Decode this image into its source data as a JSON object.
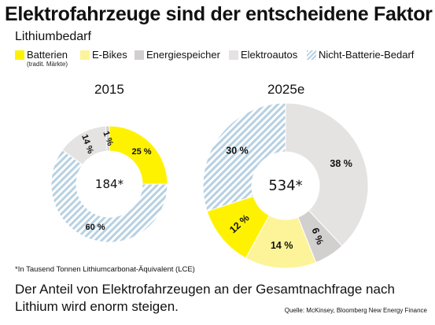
{
  "title": "Elektrofahrzeuge sind der entscheidene Faktor",
  "subtitle": "Lithiumbedarf",
  "legend": [
    {
      "label": "Batterien",
      "note": "(tradit. Märkte)",
      "color": "#fff200",
      "pattern": false
    },
    {
      "label": "E-Bikes",
      "color": "#fdf49a",
      "pattern": false
    },
    {
      "label": "Energiespeicher",
      "color": "#d2cfcf",
      "pattern": false
    },
    {
      "label": "Elektroautos",
      "color": "#e5e2e2",
      "pattern": false
    },
    {
      "label": "Nicht-Batterie-Bedarf",
      "color": "#b7d1e2",
      "pattern": true
    }
  ],
  "chart_data": [
    {
      "type": "pie",
      "title": "2015",
      "center_label": "184*",
      "total": 184,
      "slices": [
        {
          "name": "Batterien",
          "value": 25,
          "label": "25 %",
          "color": "#fff200"
        },
        {
          "name": "Nicht-Batterie-Bedarf",
          "value": 60,
          "label": "60 %",
          "color": "#b7d1e2",
          "pattern": true
        },
        {
          "name": "Elektroautos",
          "value": 14,
          "label": "14 %",
          "color": "#e5e2e2"
        },
        {
          "name": "Energiespeicher",
          "value": 1,
          "label": "1 %",
          "color": "#d2cfcf"
        }
      ]
    },
    {
      "type": "pie",
      "title": "2025e",
      "center_label": "534*",
      "total": 534,
      "slices": [
        {
          "name": "Elektroautos",
          "value": 38,
          "label": "38 %",
          "color": "#e5e2e2"
        },
        {
          "name": "Energiespeicher",
          "value": 6,
          "label": "6 %",
          "color": "#d2cfcf"
        },
        {
          "name": "E-Bikes",
          "value": 14,
          "label": "14 %",
          "color": "#fdf49a"
        },
        {
          "name": "Batterien",
          "value": 12,
          "label": "12 %",
          "color": "#fff200"
        },
        {
          "name": "Nicht-Batterie-Bedarf",
          "value": 30,
          "label": "30 %",
          "color": "#b7d1e2",
          "pattern": true
        }
      ]
    }
  ],
  "footnote": "*In Tausend Tonnen Lithiumcarbonat-Äquivalent (LCE)",
  "caption": "Der Anteil von Elektrofahrzeugen an der Gesamtnachfrage nach Lithium wird enorm steigen.",
  "source": "Quelle: McKinsey, Bloomberg New Energy Finance"
}
